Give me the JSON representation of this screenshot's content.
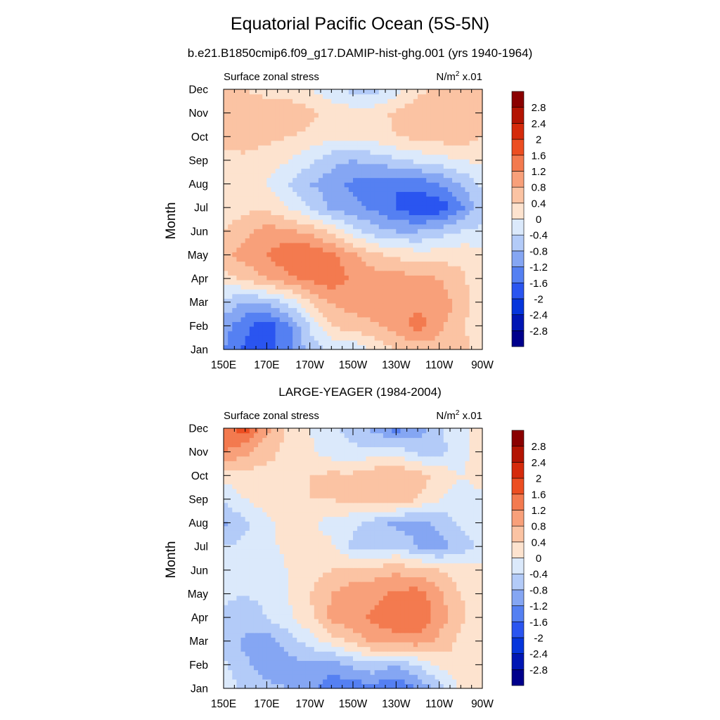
{
  "title": "Equatorial Pacific Ocean (5S-5N)",
  "colors": {
    "levels": [
      -2.8,
      -2.4,
      -2.0,
      -1.6,
      -1.2,
      -0.8,
      -0.4,
      0,
      0.4,
      0.8,
      1.2,
      1.6,
      2.0,
      2.4,
      2.8
    ],
    "fills": [
      "#00008c",
      "#0016b4",
      "#0535dc",
      "#2a55f0",
      "#5580f2",
      "#85a6f3",
      "#b3cbf8",
      "#dbe9fb",
      "#fde3cf",
      "#fbc3a3",
      "#f8a07a",
      "#f37a4f",
      "#ec4e21",
      "#d52a0b",
      "#b31403",
      "#8a0000"
    ]
  },
  "chart_data": [
    {
      "type": "heatmap",
      "title": "b.e21.B1850cmip6.f09_g17.DAMIP-hist-ghg.001 (yrs 1940-1964)",
      "left_string": "Surface zonal stress",
      "units_label": "N/m",
      "units_sup": "2",
      "units_scale": "x.01",
      "ylabel": "Month",
      "xlabel": "",
      "x_tick_labels": [
        "150E",
        "170E",
        "170W",
        "150W",
        "130W",
        "110W",
        "90W"
      ],
      "x_tick_values": [
        150,
        170,
        190,
        210,
        230,
        250,
        270
      ],
      "xlim": [
        150,
        270
      ],
      "y_tick_labels": [
        "Jan",
        "Feb",
        "Mar",
        "Apr",
        "May",
        "Jun",
        "Jul",
        "Aug",
        "Sep",
        "Oct",
        "Nov",
        "Dec"
      ],
      "ylim": [
        1,
        12
      ],
      "colorbar_labels": [
        "2.8",
        "2.4",
        "2",
        "1.6",
        "1.2",
        "0.8",
        "0.4",
        "0",
        "-0.4",
        "-0.8",
        "-1.2",
        "-1.6",
        "-2",
        "-2.4",
        "-2.8"
      ],
      "x": [
        150,
        160,
        170,
        180,
        190,
        200,
        210,
        220,
        230,
        240,
        250,
        260,
        270
      ],
      "z": [
        [
          -1.2,
          -1.7,
          -1.7,
          -1.4,
          -0.6,
          -0.3,
          -0.3,
          0.1,
          0.4,
          0.5,
          0.6,
          0.6,
          0.0
        ],
        [
          -1.0,
          -1.5,
          -1.9,
          -1.3,
          -0.4,
          0.4,
          0.6,
          0.7,
          1.0,
          1.4,
          0.9,
          0.5,
          0.1
        ],
        [
          -0.5,
          -0.9,
          -0.7,
          -0.3,
          0.4,
          0.8,
          1.0,
          1.1,
          1.1,
          1.1,
          1.1,
          0.6,
          0.1
        ],
        [
          0.2,
          0.5,
          0.8,
          1.1,
          1.3,
          1.5,
          1.1,
          1.0,
          1.0,
          0.9,
          0.8,
          0.5,
          0.1
        ],
        [
          0.7,
          1.0,
          1.2,
          1.5,
          1.6,
          1.3,
          0.9,
          0.5,
          0.3,
          0.2,
          0.2,
          0.3,
          0.2
        ],
        [
          0.4,
          0.7,
          1.0,
          0.9,
          0.7,
          0.3,
          -0.2,
          -0.6,
          -0.8,
          -0.8,
          -0.6,
          -0.4,
          -0.3
        ],
        [
          0.1,
          0.3,
          0.3,
          0.0,
          -0.4,
          -0.9,
          -1.1,
          -1.3,
          -1.6,
          -1.9,
          -1.9,
          -1.3,
          -0.5
        ],
        [
          0.2,
          0.2,
          0.0,
          -0.4,
          -0.8,
          -1.0,
          -1.3,
          -1.4,
          -1.6,
          -1.5,
          -1.2,
          -0.8,
          -0.3
        ],
        [
          0.3,
          0.3,
          0.2,
          0.0,
          -0.3,
          -0.7,
          -0.8,
          -0.7,
          -0.5,
          -0.3,
          -0.2,
          0.0,
          0.1
        ],
        [
          0.5,
          0.6,
          0.5,
          0.4,
          0.3,
          0.1,
          0.1,
          0.2,
          0.4,
          0.5,
          0.6,
          0.6,
          0.4
        ],
        [
          0.6,
          0.6,
          0.6,
          0.7,
          0.5,
          0.3,
          0.2,
          0.2,
          0.5,
          0.7,
          0.7,
          0.6,
          0.5
        ],
        [
          0.5,
          0.4,
          0.3,
          0.2,
          0.0,
          -0.3,
          -0.5,
          -0.5,
          -0.2,
          0.3,
          0.5,
          0.5,
          0.5
        ]
      ]
    },
    {
      "type": "heatmap",
      "title": "LARGE-YEAGER (1984-2004)",
      "left_string": "Surface zonal stress",
      "units_label": "N/m",
      "units_sup": "2",
      "units_scale": "x.01",
      "ylabel": "Month",
      "xlabel": "",
      "x_tick_labels": [
        "150E",
        "170E",
        "170W",
        "150W",
        "130W",
        "110W",
        "90W"
      ],
      "x_tick_values": [
        150,
        170,
        190,
        210,
        230,
        250,
        270
      ],
      "xlim": [
        150,
        270
      ],
      "y_tick_labels": [
        "Jan",
        "Feb",
        "Mar",
        "Apr",
        "May",
        "Jun",
        "Jul",
        "Aug",
        "Sep",
        "Oct",
        "Nov",
        "Dec"
      ],
      "ylim": [
        1,
        12
      ],
      "colorbar_labels": [
        "2.8",
        "2.4",
        "2",
        "1.6",
        "1.2",
        "0.8",
        "0.4",
        "0",
        "-0.4",
        "-0.8",
        "-1.2",
        "-1.6",
        "-2",
        "-2.4",
        "-2.8"
      ],
      "x": [
        150,
        160,
        170,
        180,
        190,
        200,
        210,
        220,
        230,
        240,
        250,
        260,
        270
      ],
      "z": [
        [
          -0.2,
          -0.5,
          -0.7,
          -0.8,
          -1.1,
          -1.4,
          -1.5,
          -1.4,
          -1.6,
          -1.2,
          -0.6,
          0.1,
          0.2
        ],
        [
          -0.3,
          -0.7,
          -1.0,
          -1.0,
          -0.9,
          -1.1,
          -0.7,
          -0.5,
          -0.8,
          -0.4,
          0.1,
          0.3,
          0.2
        ],
        [
          -0.6,
          -0.9,
          -1.0,
          -0.6,
          -0.2,
          0.2,
          0.5,
          0.9,
          1.0,
          1.0,
          0.7,
          0.3,
          0.1
        ],
        [
          -0.5,
          -0.6,
          -0.4,
          -0.1,
          0.3,
          0.9,
          1.1,
          1.3,
          1.5,
          1.6,
          1.0,
          0.5,
          0.1
        ],
        [
          -0.3,
          -0.4,
          -0.3,
          0.0,
          0.4,
          0.8,
          1.0,
          1.1,
          1.3,
          1.4,
          0.9,
          0.4,
          0.1
        ],
        [
          -0.3,
          -0.4,
          -0.2,
          0.0,
          0.2,
          0.4,
          0.6,
          0.6,
          0.7,
          0.6,
          0.4,
          0.2,
          0.1
        ],
        [
          -0.4,
          -0.3,
          -0.1,
          0.1,
          0.2,
          0.1,
          -0.5,
          -0.6,
          -0.4,
          -0.8,
          -1.0,
          -0.6,
          -0.3
        ],
        [
          -0.9,
          -0.5,
          -0.1,
          0.1,
          0.1,
          -0.2,
          -0.3,
          -0.6,
          -0.9,
          -1.0,
          -0.7,
          -0.3,
          -0.1
        ],
        [
          -0.3,
          0.0,
          0.2,
          0.3,
          0.4,
          0.4,
          0.5,
          0.6,
          0.7,
          0.4,
          0.0,
          -0.3,
          -0.1
        ],
        [
          0.1,
          0.2,
          0.3,
          0.3,
          0.4,
          0.5,
          0.5,
          0.7,
          0.8,
          0.6,
          0.3,
          0.0,
          0.2
        ],
        [
          1.2,
          0.9,
          0.5,
          0.3,
          0.1,
          -0.2,
          -0.3,
          -0.2,
          -0.1,
          -0.5,
          -0.5,
          -0.2,
          0.3
        ],
        [
          1.5,
          1.8,
          0.9,
          0.3,
          0.0,
          -0.3,
          -0.6,
          -0.9,
          -1.4,
          -1.0,
          -0.5,
          -0.1,
          0.2
        ]
      ]
    }
  ]
}
